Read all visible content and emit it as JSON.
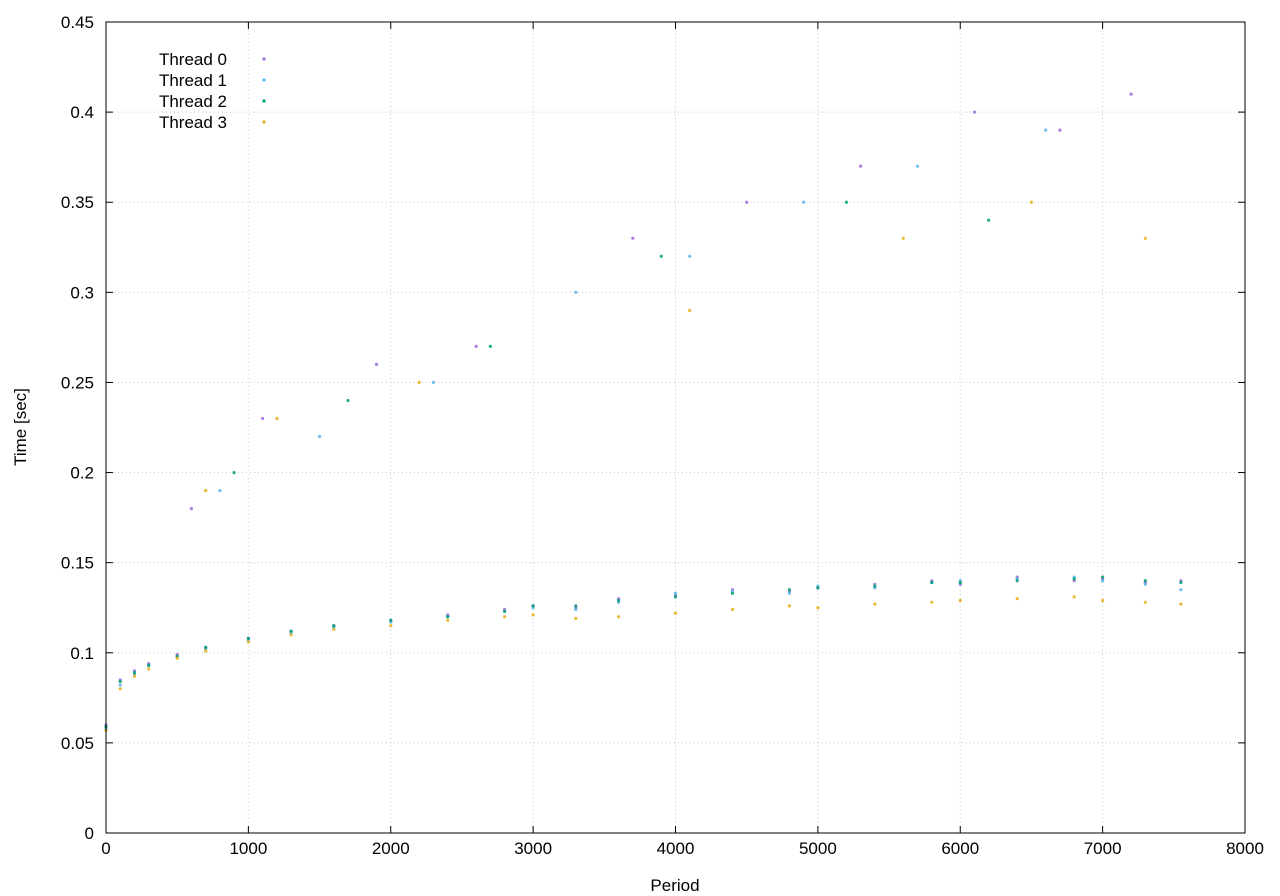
{
  "chart_data": {
    "type": "scatter",
    "title": "",
    "xlabel": "Period",
    "ylabel": "Time [sec]",
    "xlim": [
      0,
      8000
    ],
    "ylim": [
      0,
      0.45
    ],
    "xticks": [
      0,
      1000,
      2000,
      3000,
      4000,
      5000,
      6000,
      7000,
      8000
    ],
    "yticks": [
      0,
      0.05,
      0.1,
      0.15,
      0.2,
      0.25,
      0.3,
      0.35,
      0.4,
      0.45
    ],
    "xtick_labels": [
      "0",
      "1000",
      "2000",
      "3000",
      "4000",
      "5000",
      "6000",
      "7000",
      "8000"
    ],
    "ytick_labels": [
      "0",
      "0.05",
      "0.1",
      "0.15",
      "0.2",
      "0.25",
      "0.3",
      "0.35",
      "0.4",
      "0.45"
    ],
    "grid": true,
    "legend_position": "top-left",
    "series": [
      {
        "name": "Thread 0",
        "color": "#9a6ad8",
        "x": [
          0,
          100,
          200,
          300,
          500,
          700,
          1000,
          1300,
          1600,
          2000,
          2400,
          2800,
          3000,
          3300,
          3600,
          4000,
          4400,
          4800,
          5000,
          5400,
          5800,
          6000,
          6400,
          6800,
          7000,
          7300,
          7550,
          600,
          1100,
          1900,
          2600,
          3700,
          4500,
          5300,
          6100,
          6700,
          7200
        ],
        "y": [
          0.06,
          0.085,
          0.09,
          0.094,
          0.099,
          0.103,
          0.108,
          0.112,
          0.115,
          0.118,
          0.121,
          0.124,
          0.126,
          0.125,
          0.13,
          0.132,
          0.135,
          0.134,
          0.136,
          0.138,
          0.14,
          0.138,
          0.142,
          0.14,
          0.141,
          0.139,
          0.14,
          0.18,
          0.23,
          0.26,
          0.27,
          0.33,
          0.35,
          0.37,
          0.4,
          0.39,
          0.41
        ]
      },
      {
        "name": "Thread 1",
        "color": "#56b4e9",
        "x": [
          0,
          100,
          200,
          300,
          500,
          700,
          1000,
          1300,
          1600,
          2000,
          2400,
          2800,
          3000,
          3300,
          3600,
          4000,
          4400,
          4800,
          5000,
          5400,
          5800,
          6000,
          6400,
          6800,
          7000,
          7300,
          7550,
          800,
          1500,
          2300,
          3300,
          4100,
          4900,
          5700,
          6600
        ],
        "y": [
          0.058,
          0.082,
          0.088,
          0.093,
          0.098,
          0.102,
          0.107,
          0.111,
          0.114,
          0.117,
          0.12,
          0.123,
          0.125,
          0.124,
          0.128,
          0.133,
          0.134,
          0.133,
          0.137,
          0.136,
          0.139,
          0.14,
          0.141,
          0.142,
          0.14,
          0.138,
          0.135,
          0.19,
          0.22,
          0.25,
          0.3,
          0.32,
          0.35,
          0.37,
          0.39
        ]
      },
      {
        "name": "Thread 2",
        "color": "#009e73",
        "x": [
          0,
          100,
          200,
          300,
          500,
          700,
          1000,
          1300,
          1600,
          2000,
          2400,
          2800,
          3000,
          3300,
          3600,
          4000,
          4400,
          4800,
          5000,
          5400,
          5800,
          6000,
          6400,
          6800,
          7000,
          7300,
          7550,
          900,
          1700,
          2700,
          3900,
          5200,
          6200
        ],
        "y": [
          0.059,
          0.084,
          0.089,
          0.093,
          0.098,
          0.103,
          0.108,
          0.112,
          0.115,
          0.118,
          0.12,
          0.123,
          0.126,
          0.126,
          0.129,
          0.131,
          0.133,
          0.135,
          0.136,
          0.137,
          0.139,
          0.139,
          0.14,
          0.141,
          0.142,
          0.14,
          0.139,
          0.2,
          0.24,
          0.27,
          0.32,
          0.35,
          0.34
        ]
      },
      {
        "name": "Thread 3",
        "color": "#e6b012",
        "x": [
          0,
          100,
          200,
          300,
          500,
          700,
          1000,
          1300,
          1600,
          2000,
          2400,
          2800,
          3000,
          3300,
          3600,
          4000,
          4400,
          4800,
          5000,
          5400,
          5800,
          6000,
          6400,
          6800,
          7000,
          7300,
          7550,
          700,
          1200,
          2200,
          4100,
          5600,
          6500,
          7300
        ],
        "y": [
          0.057,
          0.08,
          0.087,
          0.091,
          0.097,
          0.101,
          0.106,
          0.11,
          0.113,
          0.115,
          0.118,
          0.12,
          0.121,
          0.119,
          0.12,
          0.122,
          0.124,
          0.126,
          0.125,
          0.127,
          0.128,
          0.129,
          0.13,
          0.131,
          0.129,
          0.128,
          0.127,
          0.19,
          0.23,
          0.25,
          0.29,
          0.33,
          0.35,
          0.33
        ]
      }
    ]
  }
}
